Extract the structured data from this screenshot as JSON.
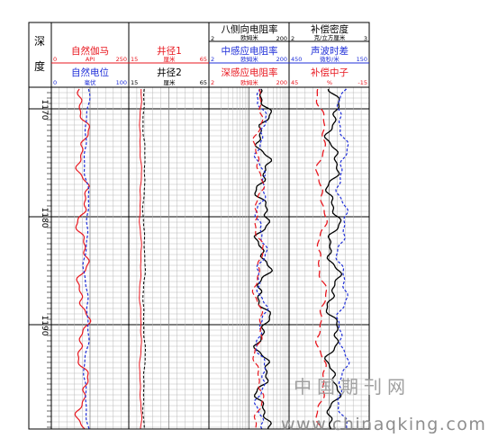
{
  "header": {
    "depth_col": {
      "line1": "深",
      "line2": "度"
    },
    "track1": {
      "curve1": {
        "name": "自然伽马",
        "unit": "API",
        "min": "0",
        "max": "250",
        "color": "#e8171f"
      },
      "curve2": {
        "name": "自然电位",
        "unit": "毫伏",
        "min": "0",
        "max": "100",
        "color": "#1f2fd8"
      }
    },
    "track2": {
      "curve1": {
        "name": "井径1",
        "unit": "厘米",
        "min": "15",
        "max": "65",
        "color": "#e8171f"
      },
      "curve2": {
        "name": "井径2",
        "unit": "厘米",
        "min": "15",
        "max": "65",
        "color": "#000000"
      }
    },
    "track3": {
      "curve1": {
        "name": "八侧向电阻率",
        "unit": "欧姆米",
        "min": "2",
        "max": "200",
        "color": "#000000"
      },
      "curve2": {
        "name": "中感应电阻率",
        "unit": "欧姆米",
        "min": "2",
        "max": "200",
        "color": "#1f2fd8"
      },
      "curve3": {
        "name": "深感应电阻率",
        "unit": "欧姆米",
        "min": "2",
        "max": "200",
        "color": "#e8171f"
      }
    },
    "track4": {
      "curve1": {
        "name": "补偿密度",
        "unit": "克/立方厘米",
        "min": "2",
        "max": "3",
        "color": "#000000"
      },
      "curve2": {
        "name": "声波时差",
        "unit": "微秒/米",
        "min": "450",
        "max": "150",
        "color": "#1f2fd8"
      },
      "curve3": {
        "name": "补偿中子",
        "unit": "%",
        "min": "45",
        "max": "-15",
        "color": "#e8171f"
      }
    }
  },
  "depth_ticks": [
    "1170",
    "1180",
    "1190"
  ],
  "watermark": {
    "cn": "中国期刊网",
    "url": "www.chinaqking.com"
  }
}
